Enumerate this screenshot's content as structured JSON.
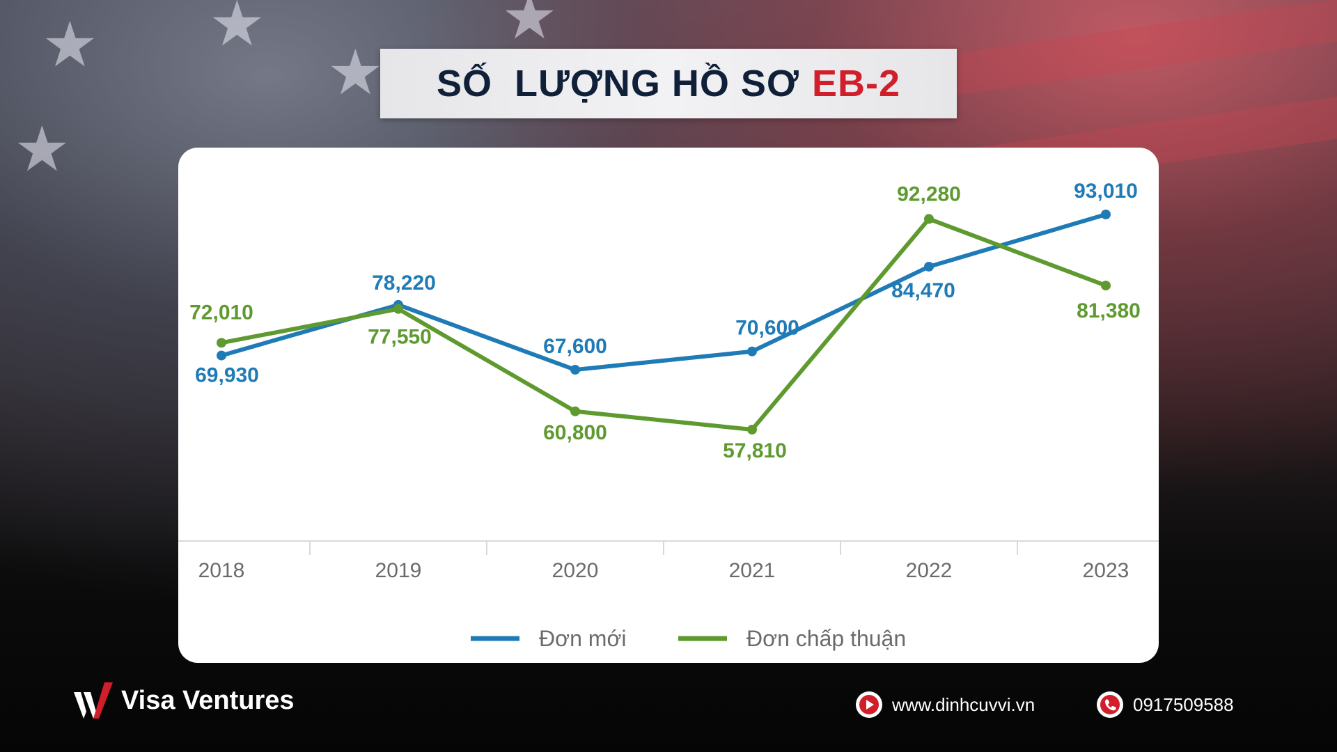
{
  "title": {
    "main": "SỐ  LƯỢNG HỒ SƠ",
    "accent": "EB-2"
  },
  "colors": {
    "new": "#1f7bb6",
    "approved": "#5e9a2f",
    "accent": "#d01e2a",
    "title": "#0f2038"
  },
  "chart_data": {
    "type": "line",
    "categories": [
      "2018",
      "2019",
      "2020",
      "2021",
      "2022",
      "2023"
    ],
    "series": [
      {
        "name": "Đơn mới",
        "values": [
          69930,
          78220,
          67600,
          70600,
          84470,
          93010
        ],
        "labels": [
          "69,930",
          "78,220",
          "67,600",
          "70,600",
          "84,470",
          "93,010"
        ]
      },
      {
        "name": "Đơn chấp thuận",
        "values": [
          72010,
          77550,
          60800,
          57810,
          92280,
          81380
        ],
        "labels": [
          "72,010",
          "77,550",
          "60,800",
          "57,810",
          "92,280",
          "81,380"
        ]
      }
    ],
    "ylim": [
      40000,
      100000
    ],
    "grid": false,
    "legend": "bottom-center"
  },
  "footer": {
    "brand": "Visa Ventures",
    "website": "www.dinhcuvvi.vn",
    "phone": "0917509588",
    "website_icon": "play-icon",
    "phone_icon": "phone-icon"
  }
}
